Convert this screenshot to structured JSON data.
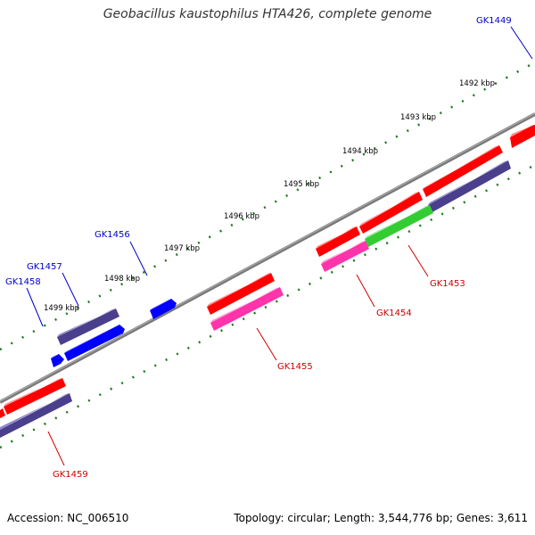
{
  "title": "Geobacillus kaustophilus HTA426, complete genome",
  "footer": {
    "accession": "Accession: NC_006510",
    "summary": "Topology: circular; Length: 3,544,776 bp; Genes: 3,611"
  },
  "ticks": [
    "1492 kbp",
    "1493 kbp",
    "1494 kbp",
    "1495 kbp",
    "1496 kbp",
    "1497 kbp",
    "1498 kbp",
    "1499 kbp"
  ],
  "genes": [
    {
      "id": "GK1449",
      "color": "#0000cc"
    },
    {
      "id": "GK1453",
      "color": "#cc0000"
    },
    {
      "id": "GK1454",
      "color": "#cc0000"
    },
    {
      "id": "GK1455",
      "color": "#cc0000"
    },
    {
      "id": "GK1456",
      "color": "#0000cc"
    },
    {
      "id": "GK1457",
      "color": "#0000cc"
    },
    {
      "id": "GK1458",
      "color": "#0000cc"
    },
    {
      "id": "GK1459",
      "color": "#cc0000"
    }
  ],
  "colors": {
    "backbone": "#808080",
    "tick": "#1a7a1a",
    "red": "#ff0000",
    "pink": "#ff33aa",
    "green": "#33cc33",
    "navy": "#4a3f8c",
    "blue": "#0000ff"
  }
}
